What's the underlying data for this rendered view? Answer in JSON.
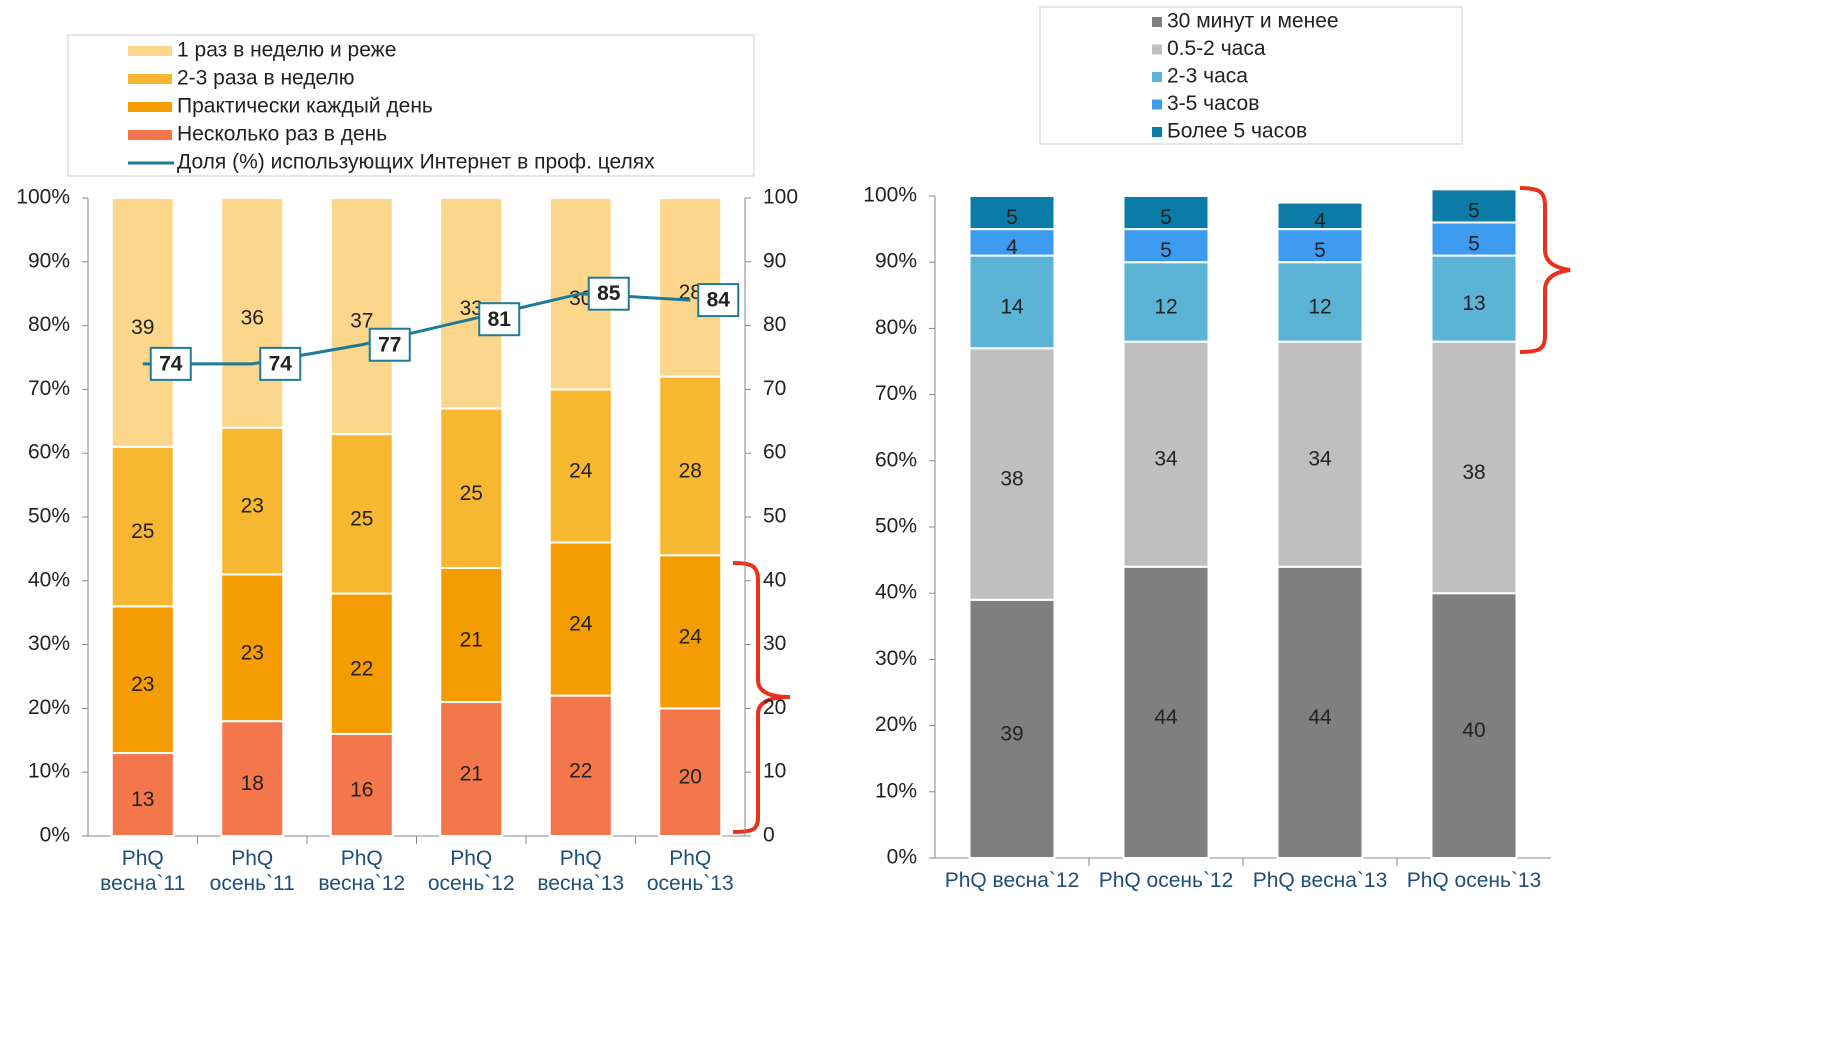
{
  "chart_data": [
    {
      "type": "bar",
      "stacked": true,
      "categories": [
        "PhQ весна`11",
        "PhQ осень`11",
        "PhQ весна`12",
        "PhQ осень`12",
        "PhQ весна`13",
        "PhQ осень`13"
      ],
      "series": [
        {
          "name": "Несколько раз в день",
          "color": "#f4764b",
          "values": [
            13,
            18,
            16,
            21,
            22,
            20
          ]
        },
        {
          "name": "Практически каждый день",
          "color": "#f59c00",
          "values": [
            23,
            23,
            22,
            21,
            24,
            24
          ]
        },
        {
          "name": "2-3 раза в неделю",
          "color": "#f7b731",
          "values": [
            25,
            23,
            25,
            25,
            24,
            28
          ]
        },
        {
          "name": "1 раз в неделю и реже",
          "color": "#fcd68a",
          "values": [
            39,
            36,
            37,
            33,
            30,
            28
          ]
        },
        {
          "name": "Доля (%) использующих  Интернет в проф. целях",
          "type": "line",
          "axis": "y2",
          "color": "#1f7a9a",
          "values": [
            74,
            74,
            77,
            81,
            85,
            84
          ]
        }
      ],
      "ylim": [
        0,
        100
      ],
      "yticks": [
        {
          "value": 0,
          "label": "0%"
        },
        {
          "value": 10,
          "label": "10%"
        },
        {
          "value": 20,
          "label": "20%"
        },
        {
          "value": 30,
          "label": "30%"
        },
        {
          "value": 40,
          "label": "40%"
        },
        {
          "value": 50,
          "label": "50%"
        },
        {
          "value": 60,
          "label": "60%"
        },
        {
          "value": 70,
          "label": "70%"
        },
        {
          "value": 80,
          "label": "80%"
        },
        {
          "value": 90,
          "label": "90%"
        },
        {
          "value": 100,
          "label": "100%"
        }
      ],
      "y2lim": [
        0,
        100
      ],
      "y2ticks": [
        0,
        10,
        20,
        30,
        40,
        50,
        60,
        70,
        80,
        90,
        100
      ]
    },
    {
      "type": "bar",
      "stacked": true,
      "categories": [
        "PhQ весна`12",
        "PhQ осень`12",
        "PhQ весна`13",
        "PhQ осень`13"
      ],
      "series": [
        {
          "name": "30 минут и менее",
          "color": "#7f7f7f",
          "values": [
            39,
            44,
            44,
            40
          ]
        },
        {
          "name": "0.5-2 часа",
          "color": "#bfbfbf",
          "values": [
            38,
            34,
            34,
            38
          ]
        },
        {
          "name": "2-3 часа",
          "color": "#5bb4d6",
          "values": [
            14,
            12,
            12,
            13
          ]
        },
        {
          "name": "3-5 часов",
          "color": "#3d9bf0",
          "values": [
            4,
            5,
            5,
            5
          ]
        },
        {
          "name": "Более 5 часов",
          "color": "#0b7ba8",
          "values": [
            5,
            5,
            4,
            5
          ]
        }
      ],
      "ylim": [
        0,
        100
      ],
      "yticks": [
        {
          "value": 0,
          "label": "0%"
        },
        {
          "value": 10,
          "label": "10%"
        },
        {
          "value": 20,
          "label": "20%"
        },
        {
          "value": 30,
          "label": "30%"
        },
        {
          "value": 40,
          "label": "40%"
        },
        {
          "value": 50,
          "label": "50%"
        },
        {
          "value": 60,
          "label": "60%"
        },
        {
          "value": 70,
          "label": "70%"
        },
        {
          "value": 80,
          "label": "80%"
        },
        {
          "value": 90,
          "label": "90%"
        },
        {
          "value": 100,
          "label": "100%"
        }
      ]
    }
  ]
}
